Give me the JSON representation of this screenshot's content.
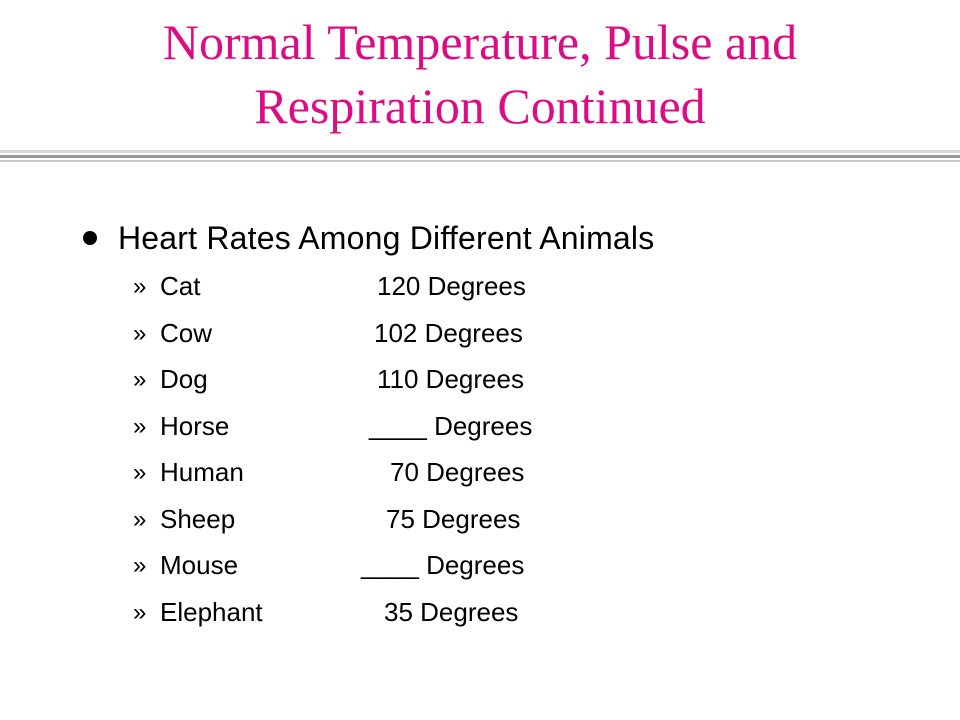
{
  "title": {
    "line1": "Normal Temperature, Pulse and",
    "line2": "Respiration Continued"
  },
  "bullet": {
    "text": "Heart Rates Among Different Animals"
  },
  "list_marker": "»",
  "items": [
    {
      "animal": "Cat",
      "value": "120  Degrees"
    },
    {
      "animal": "Cow",
      "value": "102  Degrees"
    },
    {
      "animal": "Dog",
      "value": "110  Degrees"
    },
    {
      "animal": "Horse",
      "value": "____ Degrees"
    },
    {
      "animal": "Human",
      "value": "70  Degrees"
    },
    {
      "animal": "Sheep",
      "value": "75  Degrees"
    },
    {
      "animal": "Mouse",
      "value": "____ Degrees"
    },
    {
      "animal": "Elephant",
      "value": "35  Degrees"
    }
  ],
  "colors": {
    "title": "#dd0b84",
    "text": "#000000",
    "rule": "#9a9a9a"
  }
}
